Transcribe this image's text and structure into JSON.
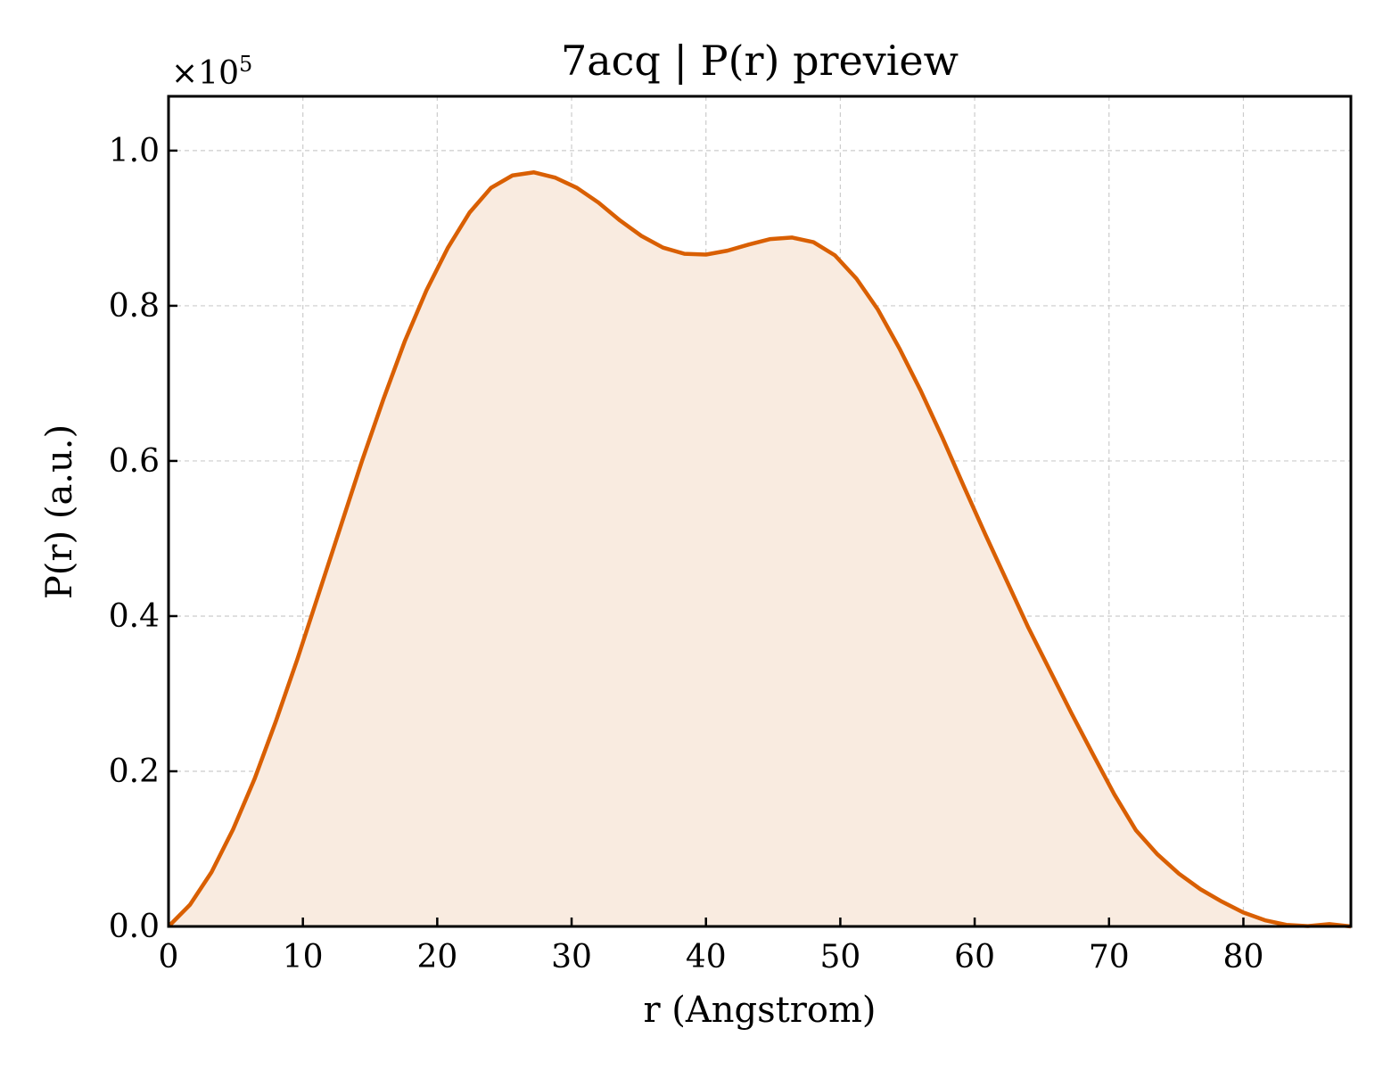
{
  "chart_data": {
    "type": "area",
    "title": "7acq | P(r) preview",
    "xlabel": "r (Angstrom)",
    "ylabel": "P(r) (a.u.)",
    "y_offset_label": "×10",
    "y_offset_exponent": "5",
    "xlim": [
      0,
      88
    ],
    "ylim": [
      0,
      1.07
    ],
    "y_scale": 100000,
    "grid": true,
    "color": "#d95f02",
    "fill_color": "#f9ebe0",
    "x_ticks": [
      0,
      10,
      20,
      30,
      40,
      50,
      60,
      70,
      80
    ],
    "x_tick_labels": [
      "0",
      "10",
      "20",
      "30",
      "40",
      "50",
      "60",
      "70",
      "80"
    ],
    "y_ticks": [
      0,
      0.2,
      0.4,
      0.6,
      0.8,
      1.0
    ],
    "y_tick_labels": [
      "0.0",
      "0.2",
      "0.4",
      "0.6",
      "0.8",
      "1.0"
    ],
    "series": [
      {
        "x": [
          0,
          1.6,
          3.2,
          4.8,
          6.4,
          8.0,
          9.6,
          11.2,
          12.8,
          14.4,
          16.0,
          17.6,
          19.2,
          20.8,
          22.4,
          24.0,
          25.6,
          27.2,
          28.8,
          30.4,
          32.0,
          33.6,
          35.2,
          36.8,
          38.4,
          40.0,
          41.6,
          43.2,
          44.8,
          46.4,
          48.0,
          49.6,
          51.2,
          52.8,
          54.4,
          56.0,
          57.6,
          59.2,
          60.8,
          62.4,
          64.0,
          65.6,
          67.2,
          68.8,
          70.4,
          72.0,
          73.6,
          75.2,
          76.8,
          78.4,
          80.0,
          81.6,
          83.2,
          84.8,
          86.4,
          88.0
        ],
        "values": [
          0.0,
          0.028,
          0.07,
          0.125,
          0.19,
          0.265,
          0.345,
          0.43,
          0.515,
          0.6,
          0.68,
          0.755,
          0.82,
          0.875,
          0.92,
          0.952,
          0.968,
          0.972,
          0.965,
          0.952,
          0.933,
          0.91,
          0.89,
          0.875,
          0.867,
          0.866,
          0.871,
          0.879,
          0.886,
          0.888,
          0.882,
          0.865,
          0.835,
          0.795,
          0.745,
          0.69,
          0.63,
          0.567,
          0.505,
          0.445,
          0.385,
          0.33,
          0.275,
          0.222,
          0.17,
          0.124,
          0.093,
          0.068,
          0.048,
          0.032,
          0.018,
          0.008,
          0.002,
          0.0005,
          0.003,
          0.0
        ]
      }
    ]
  }
}
